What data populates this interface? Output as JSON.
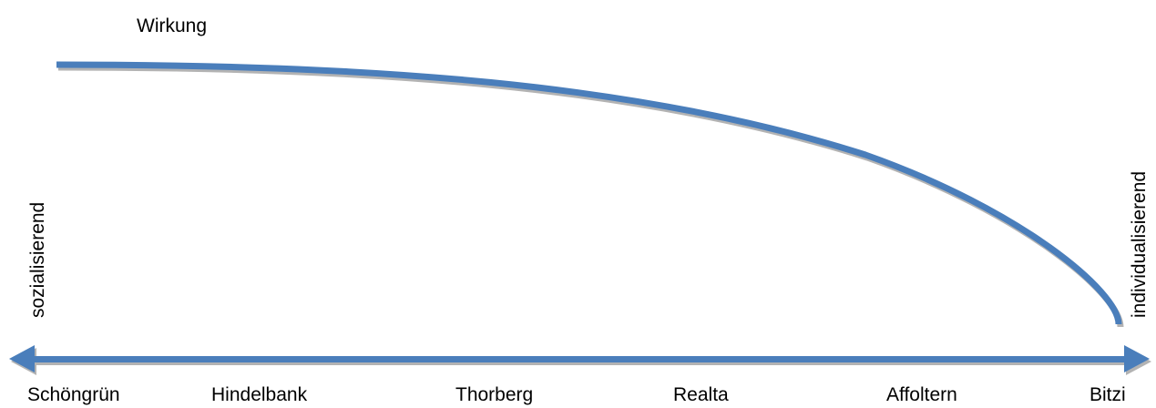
{
  "diagram": {
    "title": "Wirkung",
    "left_axis_label": "sozialisierend",
    "right_axis_label": "individualisierend",
    "x_labels": [
      "Schöngrün",
      "Hindelbank",
      "Thorberg",
      "Realta",
      "Affoltern",
      "Bitzi"
    ],
    "curve_color": "#4a7ebb",
    "curve_shadow_color": "#b3b3b3"
  }
}
